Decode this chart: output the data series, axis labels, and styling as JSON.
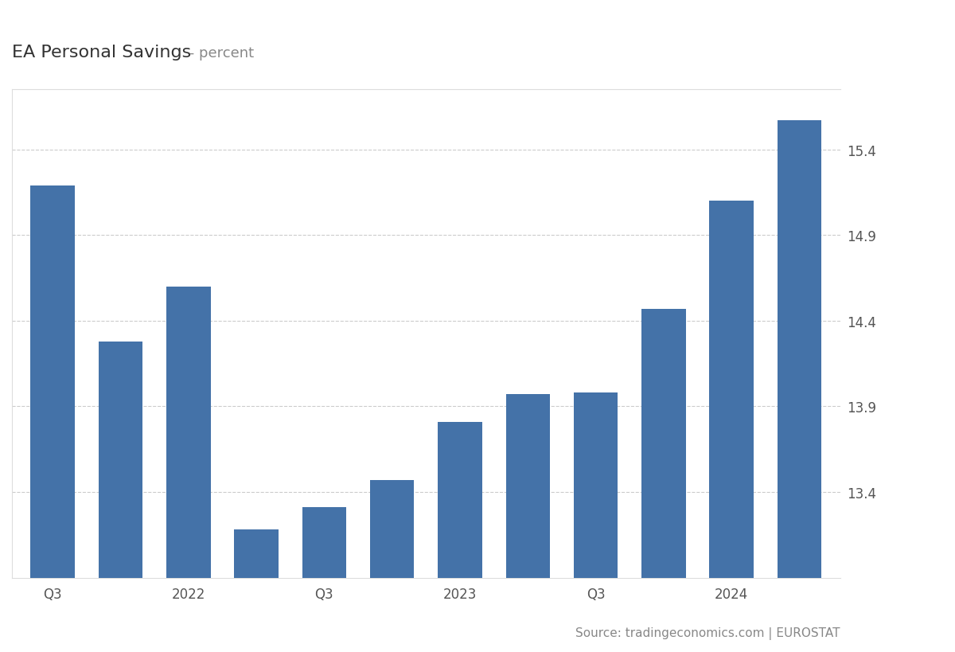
{
  "title": "EA Personal Savings",
  "title_suffix": " - percent",
  "bars": [
    {
      "value": 15.19
    },
    {
      "value": 14.28
    },
    {
      "value": 14.6
    },
    {
      "value": 13.18
    },
    {
      "value": 13.31
    },
    {
      "value": 13.47
    },
    {
      "value": 13.81
    },
    {
      "value": 13.97
    },
    {
      "value": 13.98
    },
    {
      "value": 14.47
    },
    {
      "value": 15.1
    },
    {
      "value": 15.57
    }
  ],
  "bar_color": "#4472a8",
  "background_color": "#ffffff",
  "plot_bg_color": "#ffffff",
  "ylim_min": 12.9,
  "ylim_max": 15.75,
  "yticks": [
    13.4,
    13.9,
    14.4,
    14.9,
    15.4
  ],
  "xtick_labels": [
    "Q3",
    "",
    "2022",
    "",
    "Q3",
    "",
    "2023",
    "",
    "Q3",
    "",
    "2024",
    ""
  ],
  "source_text": "Source: tradingeconomics.com | EUROSTAT",
  "grid_color": "#cccccc",
  "grid_linestyle": "--",
  "tick_color": "#555555",
  "label_fontsize": 12,
  "title_fontsize": 16,
  "title_suffix_fontsize": 13,
  "source_fontsize": 11,
  "bar_width": 0.65
}
